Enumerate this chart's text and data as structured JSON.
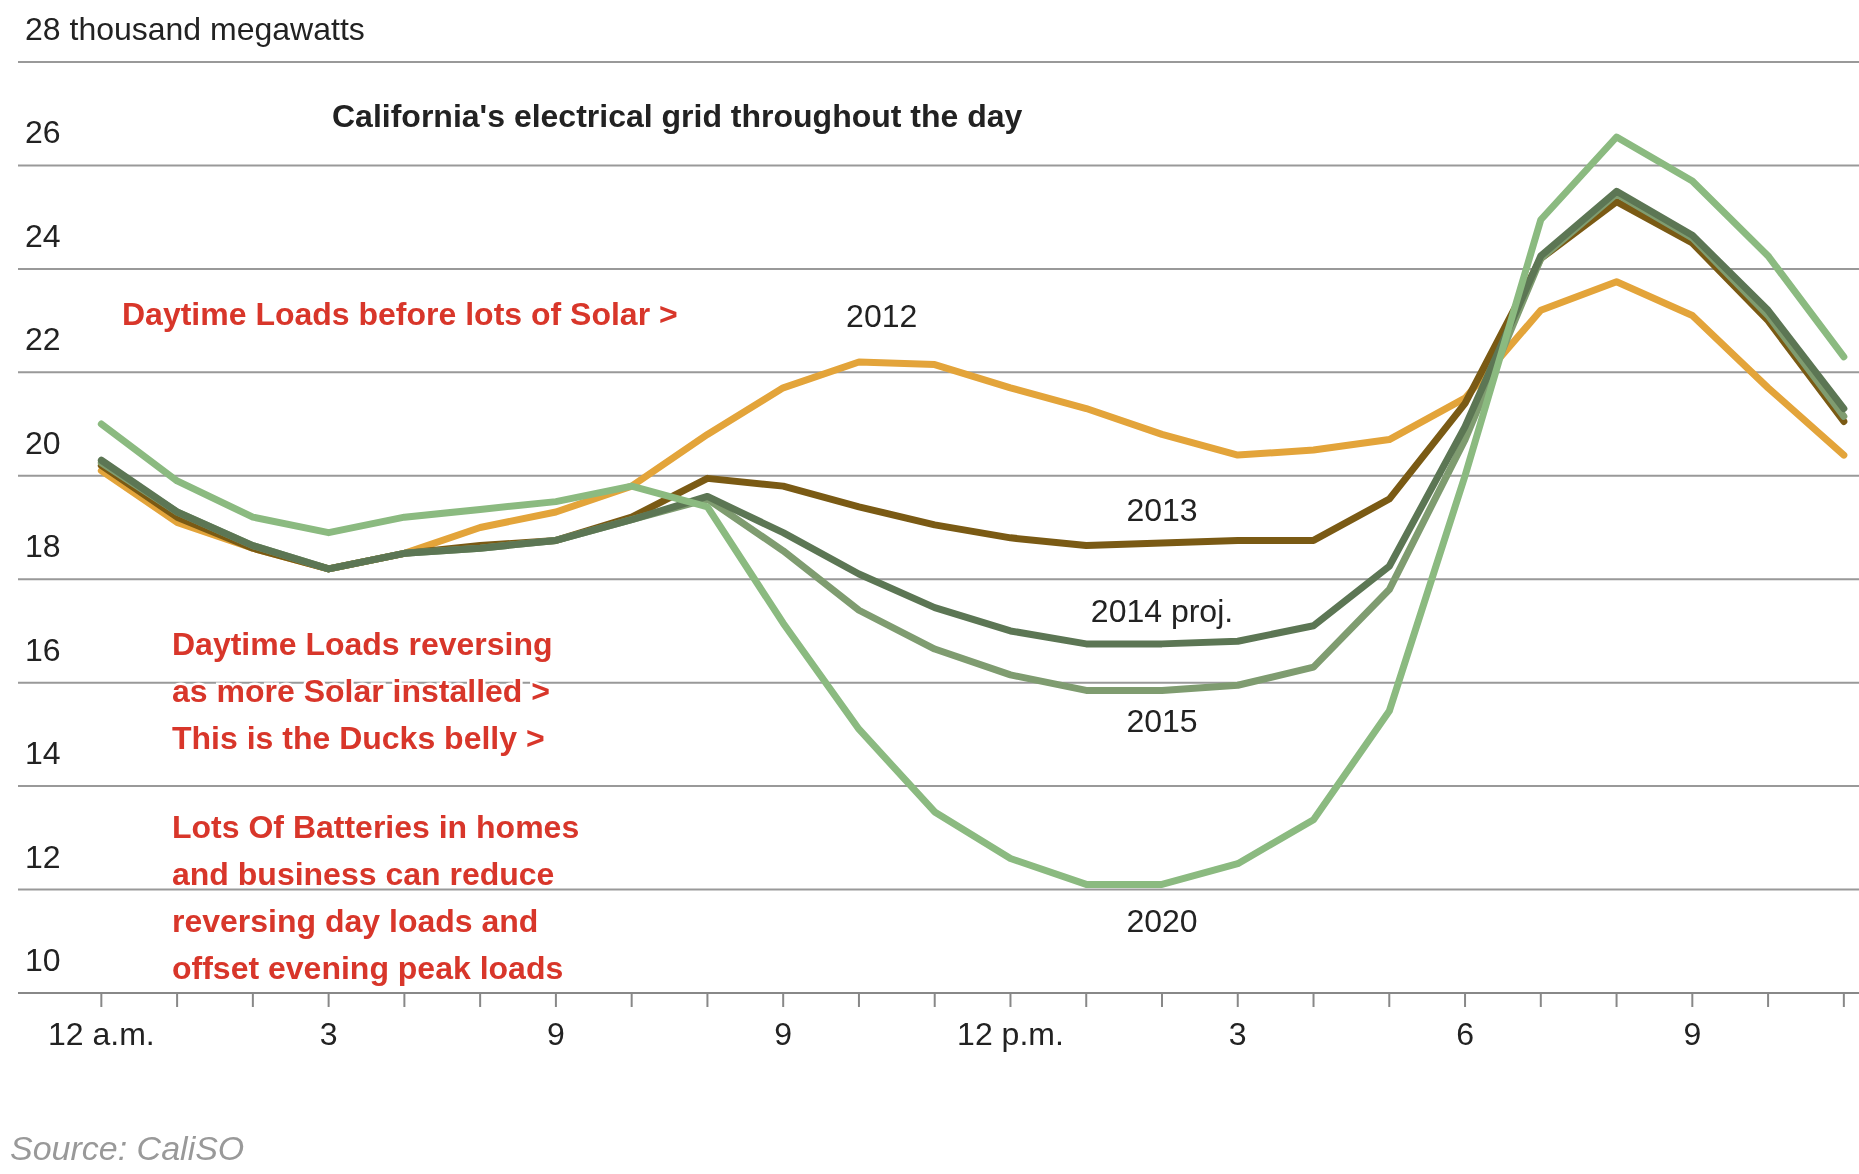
{
  "chart_data": {
    "type": "line",
    "title": "California's electrical grid throughout the day",
    "categories": [
      "12 a.m.",
      null,
      null,
      "3",
      null,
      null,
      "9",
      null,
      null,
      "9",
      null,
      null,
      "12 p.m.",
      null,
      null,
      "3",
      null,
      null,
      "6",
      null,
      null,
      "9",
      null,
      null
    ],
    "ylim": [
      10,
      28
    ],
    "yticks": [
      10,
      12,
      14,
      16,
      18,
      20,
      22,
      24,
      26,
      {
        "value": 28,
        "label": "28 thousand megawatts"
      }
    ],
    "grid": "y",
    "marker": "none",
    "line_style": "solid",
    "series": [
      {
        "name": "2012",
        "color": "#e3a43a",
        "values": [
          20.1,
          19.1,
          18.6,
          18.2,
          18.5,
          19.0,
          19.3,
          19.8,
          20.8,
          21.7,
          22.2,
          22.15,
          21.7,
          21.3,
          20.8,
          20.4,
          20.5,
          20.7,
          21.5,
          23.2,
          23.75,
          23.1,
          21.7,
          20.4
        ]
      },
      {
        "name": "2013",
        "color": "#7a5a14",
        "values": [
          20.2,
          19.2,
          18.6,
          18.2,
          18.5,
          18.65,
          18.75,
          19.2,
          19.95,
          19.8,
          19.4,
          19.05,
          18.8,
          18.65,
          18.7,
          18.75,
          18.75,
          19.55,
          21.4,
          24.2,
          25.3,
          24.5,
          23.0,
          21.05
        ]
      },
      {
        "name": "2015",
        "color": "#7f9c70",
        "values": [
          20.25,
          19.3,
          18.65,
          18.2,
          18.5,
          18.6,
          18.75,
          19.15,
          19.55,
          18.55,
          17.4,
          16.65,
          16.15,
          15.85,
          15.85,
          15.95,
          16.3,
          17.8,
          20.7,
          24.2,
          25.45,
          24.6,
          23.1,
          21.15
        ]
      },
      {
        "name": "2014 proj.",
        "color": "#5c7654",
        "values": [
          20.3,
          19.3,
          18.65,
          18.2,
          18.5,
          18.6,
          18.75,
          19.15,
          19.6,
          18.9,
          18.1,
          17.45,
          17.0,
          16.75,
          16.75,
          16.8,
          17.1,
          18.25,
          20.95,
          24.25,
          25.5,
          24.65,
          23.2,
          21.3
        ]
      },
      {
        "name": "2020",
        "color": "#8bba80",
        "values": [
          21.0,
          19.9,
          19.2,
          18.9,
          19.2,
          19.35,
          19.5,
          19.8,
          19.4,
          17.15,
          15.1,
          13.5,
          12.6,
          12.1,
          12.1,
          12.5,
          13.35,
          15.45,
          20.0,
          24.95,
          26.55,
          25.7,
          24.25,
          22.3
        ]
      }
    ],
    "annotations": [
      "Daytime Loads before lots of Solar >",
      "Daytime Loads reversing\nas more Solar installed  >\nThis is the Ducks belly  >",
      "Lots Of Batteries in homes\nand business can reduce\nreversing day loads and\noffset evening peak loads",
      "Source: CaliSO"
    ]
  }
}
